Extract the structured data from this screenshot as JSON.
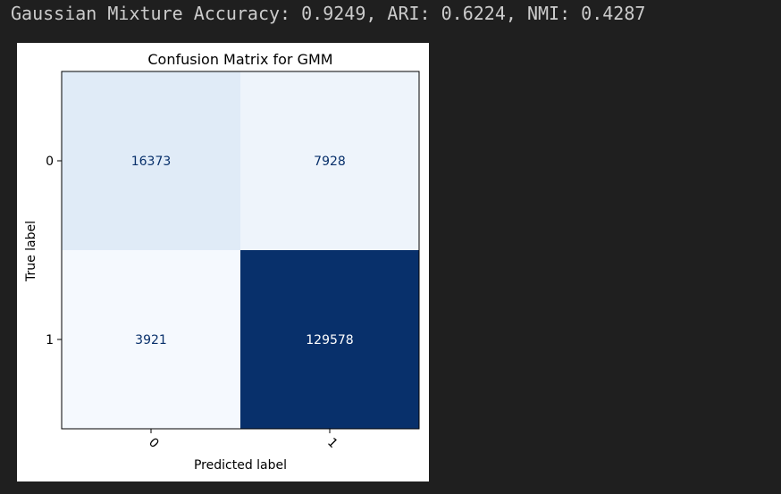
{
  "output": {
    "text": "Gaussian Mixture Accuracy: 0.9249, ARI: 0.6224, NMI: 0.4287"
  },
  "colors": {
    "background": "#1f1f1f",
    "text": "#cccccc",
    "colormap": "Blues",
    "light_label": "#ffffff",
    "dark_label": "#08306b"
  },
  "chart_data": {
    "type": "heatmap",
    "title": "Confusion Matrix for GMM",
    "xlabel": "Predicted label",
    "ylabel": "True label",
    "x_ticks": [
      "0",
      "1"
    ],
    "y_ticks": [
      "0",
      "1"
    ],
    "matrix": [
      [
        16373,
        7928
      ],
      [
        3921,
        129578
      ]
    ],
    "cell_colors": [
      [
        "#e0ebf7",
        "#eef4fb"
      ],
      [
        "#f5f9fe",
        "#08306b"
      ]
    ],
    "colorbar": false,
    "grid": false
  }
}
